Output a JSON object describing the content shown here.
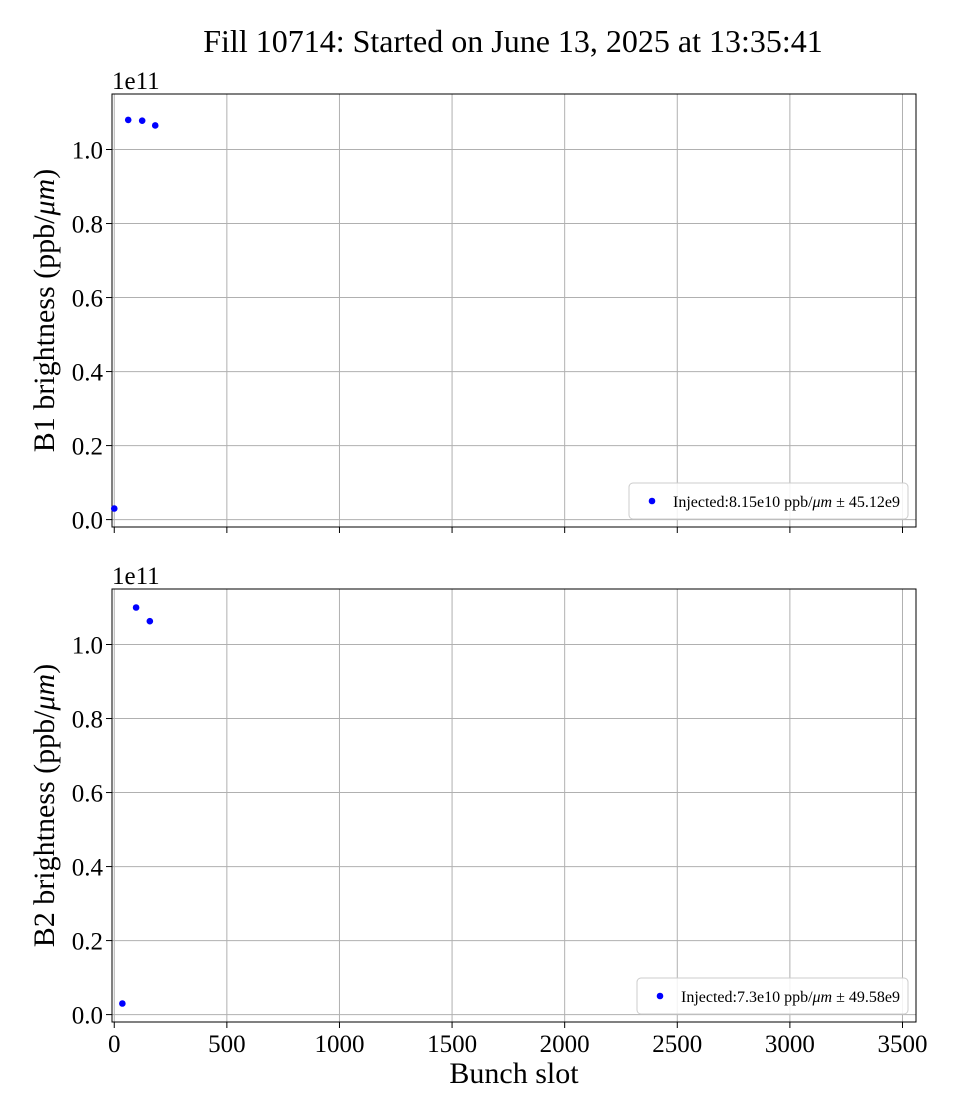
{
  "figure_title": "Fill 10714: Started on June 13, 2025 at 13:35:41",
  "chart_data": [
    {
      "type": "scatter",
      "ylabel_prefix": "B1 brightness (ppb/",
      "ylabel_unit": "μm",
      "ylabel_suffix": ")",
      "y_multiplier": "1e11",
      "xlabel": "",
      "xlim": [
        -10,
        3560
      ],
      "ylim": [
        -0.02,
        1.15
      ],
      "xticks": [
        0,
        500,
        1000,
        1500,
        2000,
        2500,
        3000,
        3500
      ],
      "yticks": [
        0.0,
        0.2,
        0.4,
        0.6,
        0.8,
        1.0
      ],
      "ytick_labels": [
        "0.0",
        "0.2",
        "0.4",
        "0.6",
        "0.8",
        "1.0"
      ],
      "xtick_labels_visible": false,
      "grid": true,
      "legend_position": "lower-right",
      "series": [
        {
          "name_prefix": "Injected:8.15e10 ppb/",
          "name_unit": "μm",
          "name_suffix": " ± 45.12e9",
          "color": "#0000ff",
          "x": [
            0,
            62,
            124,
            182
          ],
          "y": [
            0.03,
            1.08,
            1.078,
            1.065
          ]
        }
      ]
    },
    {
      "type": "scatter",
      "ylabel_prefix": "B2 brightness (ppb/",
      "ylabel_unit": "μm",
      "ylabel_suffix": ")",
      "y_multiplier": "1e11",
      "xlabel": "Bunch slot",
      "xlim": [
        -10,
        3560
      ],
      "ylim": [
        -0.02,
        1.15
      ],
      "xticks": [
        0,
        500,
        1000,
        1500,
        2000,
        2500,
        3000,
        3500
      ],
      "xtick_labels": [
        "0",
        "500",
        "1000",
        "1500",
        "2000",
        "2500",
        "3000",
        "3500"
      ],
      "yticks": [
        0.0,
        0.2,
        0.4,
        0.6,
        0.8,
        1.0
      ],
      "ytick_labels": [
        "0.0",
        "0.2",
        "0.4",
        "0.6",
        "0.8",
        "1.0"
      ],
      "xtick_labels_visible": true,
      "grid": true,
      "legend_position": "lower-right",
      "series": [
        {
          "name_prefix": "Injected:7.3e10 ppb/",
          "name_unit": "μm",
          "name_suffix": " ± 49.58e9",
          "color": "#0000ff",
          "x": [
            36,
            97,
            158
          ],
          "y": [
            0.03,
            1.1,
            1.063
          ]
        }
      ]
    }
  ]
}
